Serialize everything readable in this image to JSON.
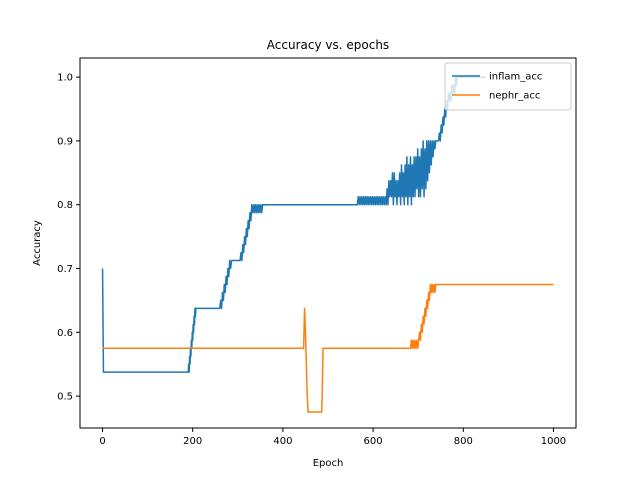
{
  "chart_data": {
    "type": "line",
    "title": "Accuracy vs. epochs",
    "xlabel": "Epoch",
    "ylabel": "Accuracy",
    "xlim": [
      -50,
      1050
    ],
    "ylim": [
      0.45,
      1.03
    ],
    "xticks": [
      0,
      200,
      400,
      600,
      800,
      1000
    ],
    "yticks": [
      0.5,
      0.6,
      0.7,
      0.8,
      0.9,
      1.0
    ],
    "grid": false,
    "legend_position": "top-right",
    "series": [
      {
        "name": "inflam_acc",
        "color": "#1f77b4",
        "points": [
          [
            0,
            0.7
          ],
          [
            2,
            0.5375
          ],
          [
            188,
            0.5375
          ],
          [
            190,
            0.5375
          ],
          [
            191,
            0.55
          ],
          [
            192,
            0.5375
          ],
          [
            193,
            0.5625
          ],
          [
            194,
            0.55
          ],
          [
            195,
            0.575
          ],
          [
            196,
            0.5625
          ],
          [
            197,
            0.5875
          ],
          [
            198,
            0.575
          ],
          [
            199,
            0.6
          ],
          [
            200,
            0.5875
          ],
          [
            201,
            0.6125
          ],
          [
            202,
            0.6
          ],
          [
            203,
            0.625
          ],
          [
            204,
            0.6125
          ],
          [
            205,
            0.6375
          ],
          [
            206,
            0.625
          ],
          [
            207,
            0.6375
          ],
          [
            208,
            0.6375
          ],
          [
            260,
            0.6375
          ],
          [
            262,
            0.65
          ],
          [
            264,
            0.6375
          ],
          [
            266,
            0.6625
          ],
          [
            268,
            0.65
          ],
          [
            270,
            0.675
          ],
          [
            272,
            0.6625
          ],
          [
            274,
            0.6875
          ],
          [
            276,
            0.675
          ],
          [
            278,
            0.7
          ],
          [
            280,
            0.6875
          ],
          [
            282,
            0.7125
          ],
          [
            284,
            0.7
          ],
          [
            286,
            0.7125
          ],
          [
            305,
            0.7125
          ],
          [
            307,
            0.725
          ],
          [
            309,
            0.7125
          ],
          [
            311,
            0.7375
          ],
          [
            313,
            0.725
          ],
          [
            315,
            0.75
          ],
          [
            317,
            0.7375
          ],
          [
            319,
            0.7625
          ],
          [
            321,
            0.75
          ],
          [
            323,
            0.775
          ],
          [
            325,
            0.7625
          ],
          [
            327,
            0.7875
          ],
          [
            329,
            0.775
          ],
          [
            331,
            0.8
          ],
          [
            333,
            0.7875
          ],
          [
            335,
            0.8
          ],
          [
            337,
            0.7875
          ],
          [
            339,
            0.8
          ],
          [
            341,
            0.7875
          ],
          [
            343,
            0.8
          ],
          [
            345,
            0.7875
          ],
          [
            347,
            0.8
          ],
          [
            349,
            0.7875
          ],
          [
            351,
            0.8
          ],
          [
            353,
            0.7875
          ],
          [
            355,
            0.8
          ],
          [
            565,
            0.8
          ],
          [
            567,
            0.8125
          ],
          [
            569,
            0.8
          ],
          [
            571,
            0.8125
          ],
          [
            573,
            0.8
          ],
          [
            575,
            0.8125
          ],
          [
            577,
            0.8
          ],
          [
            579,
            0.8125
          ],
          [
            581,
            0.8
          ],
          [
            583,
            0.8125
          ],
          [
            585,
            0.8
          ],
          [
            587,
            0.8125
          ],
          [
            589,
            0.8
          ],
          [
            591,
            0.8125
          ],
          [
            593,
            0.8
          ],
          [
            595,
            0.8125
          ],
          [
            597,
            0.8
          ],
          [
            599,
            0.8125
          ],
          [
            601,
            0.8
          ],
          [
            603,
            0.8125
          ],
          [
            605,
            0.8
          ],
          [
            607,
            0.8125
          ],
          [
            609,
            0.8
          ],
          [
            611,
            0.8125
          ],
          [
            613,
            0.8
          ],
          [
            615,
            0.8125
          ],
          [
            617,
            0.8
          ],
          [
            619,
            0.8125
          ],
          [
            621,
            0.8
          ],
          [
            623,
            0.8125
          ],
          [
            625,
            0.8
          ],
          [
            627,
            0.8125
          ],
          [
            629,
            0.8
          ],
          [
            631,
            0.825
          ],
          [
            633,
            0.8
          ],
          [
            635,
            0.8375
          ],
          [
            637,
            0.8125
          ],
          [
            639,
            0.8375
          ],
          [
            641,
            0.8125
          ],
          [
            643,
            0.85
          ],
          [
            645,
            0.8
          ],
          [
            647,
            0.85
          ],
          [
            649,
            0.8125
          ],
          [
            651,
            0.8375
          ],
          [
            653,
            0.8
          ],
          [
            655,
            0.8375
          ],
          [
            657,
            0.8125
          ],
          [
            659,
            0.85
          ],
          [
            661,
            0.8
          ],
          [
            663,
            0.8625
          ],
          [
            665,
            0.8125
          ],
          [
            667,
            0.85
          ],
          [
            669,
            0.8
          ],
          [
            671,
            0.8625
          ],
          [
            673,
            0.8125
          ],
          [
            675,
            0.875
          ],
          [
            677,
            0.8
          ],
          [
            679,
            0.8625
          ],
          [
            681,
            0.8125
          ],
          [
            683,
            0.875
          ],
          [
            685,
            0.8
          ],
          [
            687,
            0.8625
          ],
          [
            689,
            0.8125
          ],
          [
            691,
            0.875
          ],
          [
            693,
            0.8125
          ],
          [
            695,
            0.875
          ],
          [
            697,
            0.825
          ],
          [
            699,
            0.8875
          ],
          [
            701,
            0.8125
          ],
          [
            703,
            0.875
          ],
          [
            705,
            0.8125
          ],
          [
            707,
            0.8875
          ],
          [
            709,
            0.825
          ],
          [
            711,
            0.9
          ],
          [
            713,
            0.8125
          ],
          [
            715,
            0.8875
          ],
          [
            717,
            0.825
          ],
          [
            719,
            0.9
          ],
          [
            721,
            0.8375
          ],
          [
            723,
            0.9
          ],
          [
            725,
            0.85
          ],
          [
            727,
            0.9
          ],
          [
            729,
            0.8625
          ],
          [
            731,
            0.9
          ],
          [
            733,
            0.875
          ],
          [
            735,
            0.9
          ],
          [
            737,
            0.8875
          ],
          [
            739,
            0.9
          ],
          [
            745,
            0.9
          ],
          [
            747,
            0.9125
          ],
          [
            749,
            0.9
          ],
          [
            751,
            0.925
          ],
          [
            753,
            0.9125
          ],
          [
            755,
            0.9375
          ],
          [
            757,
            0.925
          ],
          [
            759,
            0.95
          ],
          [
            761,
            0.9375
          ],
          [
            763,
            0.9625
          ],
          [
            765,
            0.95
          ],
          [
            767,
            0.975
          ],
          [
            769,
            0.9625
          ],
          [
            771,
            0.975
          ],
          [
            773,
            0.9625
          ],
          [
            775,
            0.9875
          ],
          [
            777,
            0.975
          ],
          [
            779,
            0.9875
          ],
          [
            781,
            0.975
          ],
          [
            783,
            1.0
          ],
          [
            785,
            0.9875
          ],
          [
            787,
            1.0
          ],
          [
            790,
            1.0
          ],
          [
            795,
            1.0
          ],
          [
            800,
            1.0
          ],
          [
            850,
            1.0
          ]
        ]
      },
      {
        "name": "nephr_acc",
        "color": "#ff7f0e",
        "points": [
          [
            0,
            0.575
          ],
          [
            440,
            0.575
          ],
          [
            446,
            0.575
          ],
          [
            448,
            0.6375
          ],
          [
            450,
            0.6
          ],
          [
            452,
            0.55
          ],
          [
            454,
            0.5
          ],
          [
            456,
            0.475
          ],
          [
            484,
            0.475
          ],
          [
            486,
            0.475
          ],
          [
            487,
            0.5
          ],
          [
            488,
            0.5375
          ],
          [
            489,
            0.575
          ],
          [
            490,
            0.575
          ],
          [
            683,
            0.575
          ],
          [
            685,
            0.5875
          ],
          [
            687,
            0.575
          ],
          [
            689,
            0.5875
          ],
          [
            691,
            0.575
          ],
          [
            693,
            0.5875
          ],
          [
            695,
            0.575
          ],
          [
            697,
            0.5875
          ],
          [
            699,
            0.575
          ],
          [
            701,
            0.5875
          ],
          [
            703,
            0.6
          ],
          [
            705,
            0.5875
          ],
          [
            707,
            0.6125
          ],
          [
            709,
            0.6
          ],
          [
            711,
            0.625
          ],
          [
            713,
            0.6125
          ],
          [
            715,
            0.6375
          ],
          [
            717,
            0.625
          ],
          [
            719,
            0.65
          ],
          [
            721,
            0.6375
          ],
          [
            723,
            0.6625
          ],
          [
            725,
            0.65
          ],
          [
            727,
            0.675
          ],
          [
            729,
            0.6625
          ],
          [
            731,
            0.675
          ],
          [
            733,
            0.6625
          ],
          [
            735,
            0.675
          ],
          [
            737,
            0.6625
          ],
          [
            739,
            0.675
          ],
          [
            741,
            0.675
          ],
          [
            1000,
            0.675
          ]
        ]
      }
    ]
  }
}
